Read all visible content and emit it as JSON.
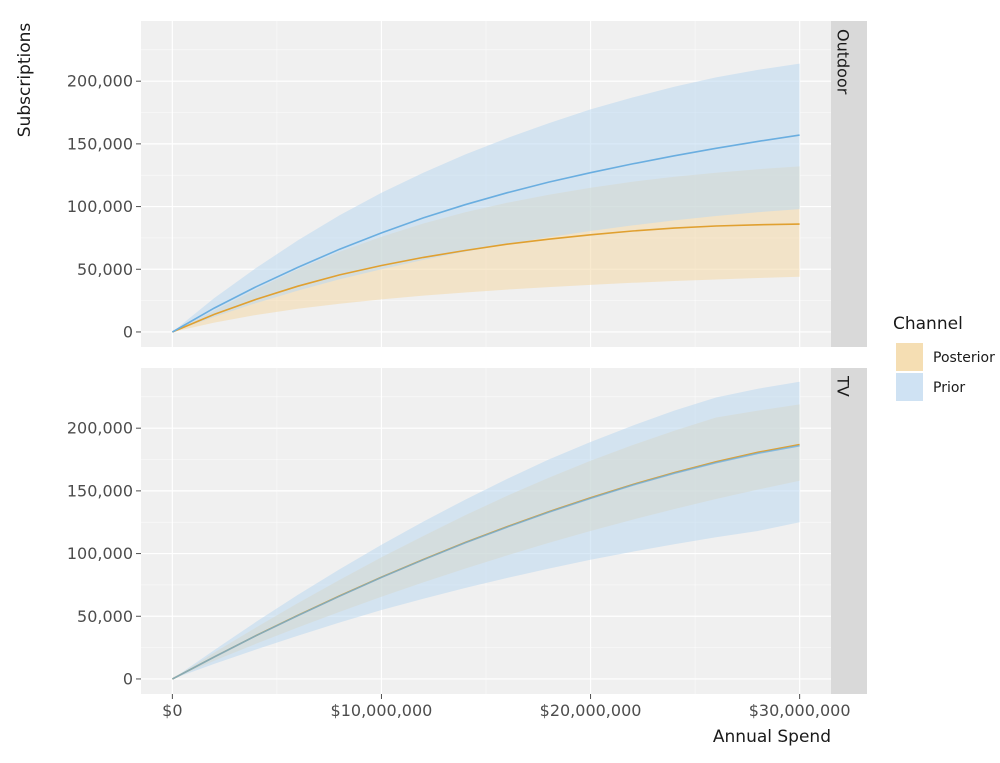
{
  "chart_data": {
    "type": "area",
    "xlabel": "Annual Spend",
    "ylabel": "Subscriptions",
    "x_ticks": [
      0,
      10000000,
      20000000,
      30000000
    ],
    "x_tick_labels": [
      "$0",
      "$10,000,000",
      "$20,000,000",
      "$30,000,000"
    ],
    "xlim": [
      -1500000,
      31500000
    ],
    "y_ticks": [
      0,
      50000,
      100000,
      150000,
      200000
    ],
    "y_tick_labels": [
      "0",
      "50,000",
      "100,000",
      "150,000",
      "200,000"
    ],
    "ylim": [
      -12000,
      248000
    ],
    "legend": {
      "title": "Channel",
      "position": "right",
      "entries": [
        {
          "name": "Posterior",
          "color": "#f5deb3"
        },
        {
          "name": "Prior",
          "color": "#cfe2f3"
        }
      ]
    },
    "colors": {
      "posterior_line": "#e0a030",
      "posterior_band": "#f4d9a8",
      "prior_line": "#6aaee0",
      "prior_band": "#bcd8f0",
      "panel_bg": "#f0f0f0",
      "strip_bg": "#d9d9d9",
      "grid": "#ffffff"
    },
    "x": [
      0,
      2000000,
      4000000,
      6000000,
      8000000,
      10000000,
      12000000,
      14000000,
      16000000,
      18000000,
      20000000,
      22000000,
      24000000,
      26000000,
      28000000,
      30000000
    ],
    "panels": [
      {
        "label": "Outdoor",
        "series": [
          {
            "name": "Prior",
            "mean": [
              0,
              19000,
              36000,
              51500,
              66000,
              79000,
              91000,
              101500,
              111000,
              119500,
              127000,
              134000,
              140500,
              146500,
              152000,
              157000
            ],
            "lower": [
              0,
              12000,
              23000,
              33000,
              42000,
              50000,
              57500,
              64000,
              70000,
              75500,
              80500,
              85000,
              89000,
              92500,
              95500,
              98000
            ],
            "upper": [
              0,
              27000,
              51000,
              73000,
              93000,
              111000,
              127000,
              141500,
              154500,
              166500,
              177500,
              187000,
              195500,
              203000,
              209000,
              214000
            ]
          },
          {
            "name": "Posterior",
            "mean": [
              0,
              14000,
              26000,
              36500,
              45500,
              53000,
              59500,
              65000,
              70000,
              74000,
              77500,
              80500,
              82800,
              84500,
              85500,
              86000
            ],
            "lower": [
              0,
              7500,
              13500,
              18500,
              22500,
              26000,
              29000,
              31500,
              33800,
              35800,
              37500,
              39200,
              40600,
              41800,
              43000,
              44000
            ],
            "upper": [
              0,
              17000,
              34000,
              50000,
              64000,
              76000,
              86500,
              95500,
              103000,
              109500,
              115000,
              119800,
              123800,
              127000,
              129800,
              132000
            ]
          }
        ]
      },
      {
        "label": "TV",
        "series": [
          {
            "name": "Prior",
            "mean": [
              0,
              17500,
              34500,
              50500,
              66000,
              81000,
              95000,
              108500,
              121000,
              133000,
              144000,
              154500,
              164000,
              172500,
              180000,
              186000
            ],
            "lower": [
              0,
              12000,
              23500,
              34500,
              45000,
              55000,
              64000,
              72500,
              80500,
              88000,
              95000,
              101500,
              107500,
              113000,
              118000,
              125000
            ],
            "upper": [
              0,
              23000,
              45500,
              67000,
              87500,
              107000,
              125500,
              143000,
              159500,
              175000,
              189000,
              202000,
              214000,
              224500,
              231500,
              237000
            ]
          },
          {
            "name": "Posterior",
            "mean": [
              0,
              17600,
              34600,
              50700,
              66200,
              81200,
              95300,
              108800,
              121400,
              133400,
              144500,
              155000,
              164600,
              173200,
              180800,
              187000
            ],
            "lower": [
              0,
              14500,
              28000,
              41000,
              53500,
              65500,
              77000,
              88000,
              98500,
              108500,
              118000,
              127000,
              135500,
              143500,
              151000,
              158000
            ],
            "upper": [
              0,
              21000,
              41000,
              60500,
              79000,
              97000,
              114000,
              130500,
              146000,
              160500,
              174000,
              186500,
              198000,
              208500,
              214000,
              219000
            ]
          }
        ]
      }
    ]
  }
}
